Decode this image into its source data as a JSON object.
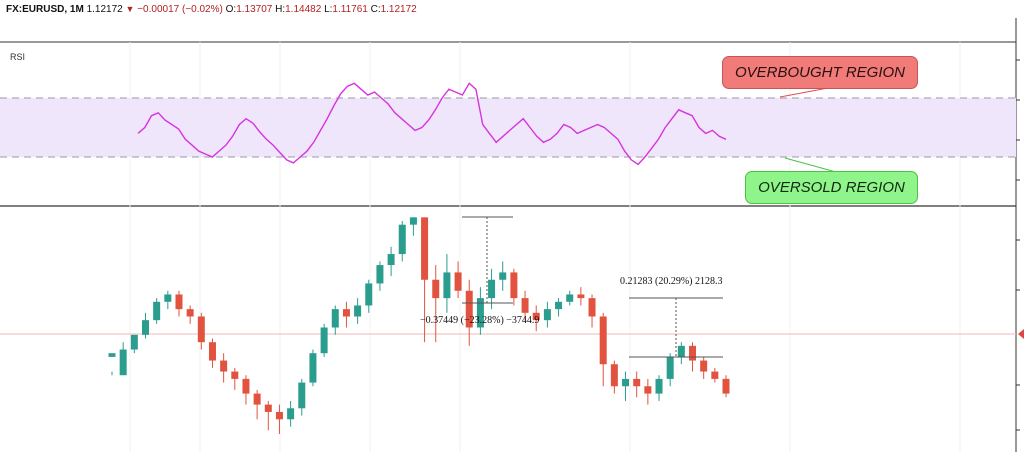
{
  "header": {
    "symbol": "FX:EURUSD, 1M",
    "last": "1.12172",
    "change_arrow": "▼",
    "change": "−0.00017 (−0.02%)",
    "o_label": "O:",
    "o": "1.13707",
    "h_label": "H:",
    "h": "1.14482",
    "l_label": "L:",
    "l": "1.11761",
    "c_label": "C:",
    "c": "1.12172"
  },
  "rsi_panel": {
    "label": "RSI",
    "overbought_label": "OVERBOUGHT REGION",
    "oversold_label": "OVERSOLD REGION",
    "band_color": "#efe6fb",
    "line_color": "#d633e0",
    "overbought_color": "#f07b78",
    "oversold_color": "#8ff58b"
  },
  "price_panel": {
    "measure_down": "−0.37449 (−23.28%) −3744.9",
    "measure_up": "0.21283 (20.29%) 2128.3",
    "up_color": "#2a9d8f",
    "down_color": "#e2533f"
  },
  "chart_data": {
    "type": "candlestick",
    "instrument": "FX:EURUSD",
    "interval": "1M",
    "rsi": {
      "overbought": 70,
      "oversold": 30,
      "ylim": [
        0,
        100
      ],
      "values": [
        46,
        50,
        58,
        60,
        55,
        52,
        49,
        42,
        38,
        34,
        32,
        30,
        34,
        38,
        44,
        52,
        56,
        53,
        47,
        42,
        38,
        33,
        28,
        26,
        30,
        34,
        40,
        48,
        56,
        65,
        73,
        78,
        80,
        76,
        72,
        74,
        70,
        66,
        60,
        56,
        52,
        48,
        50,
        55,
        62,
        70,
        76,
        74,
        72,
        80,
        76,
        52,
        46,
        40,
        44,
        48,
        52,
        56,
        50,
        44,
        40,
        42,
        46,
        52,
        50,
        46,
        48,
        50,
        52,
        50,
        46,
        42,
        34,
        28,
        25,
        30,
        36,
        42,
        50,
        56,
        62,
        60,
        58,
        50,
        46,
        48,
        44,
        42
      ]
    },
    "price": {
      "ylim": [
        0.98,
        1.62
      ],
      "candles": [
        [
          1.22,
          1.23,
          1.18,
          1.17
        ],
        [
          1.17,
          1.24,
          1.26,
          1.23
        ],
        [
          1.24,
          1.28,
          1.28,
          1.23
        ],
        [
          1.28,
          1.32,
          1.34,
          1.27
        ],
        [
          1.32,
          1.37,
          1.38,
          1.31
        ],
        [
          1.37,
          1.39,
          1.4,
          1.35
        ],
        [
          1.39,
          1.35,
          1.4,
          1.33
        ],
        [
          1.35,
          1.33,
          1.36,
          1.31
        ],
        [
          1.33,
          1.26,
          1.34,
          1.24
        ],
        [
          1.26,
          1.21,
          1.27,
          1.19
        ],
        [
          1.21,
          1.18,
          1.23,
          1.15
        ],
        [
          1.18,
          1.16,
          1.19,
          1.13
        ],
        [
          1.16,
          1.12,
          1.17,
          1.09
        ],
        [
          1.12,
          1.09,
          1.13,
          1.05
        ],
        [
          1.09,
          1.07,
          1.1,
          1.02
        ],
        [
          1.07,
          1.05,
          1.09,
          1.01
        ],
        [
          1.05,
          1.08,
          1.1,
          1.03
        ],
        [
          1.08,
          1.15,
          1.16,
          1.06
        ],
        [
          1.15,
          1.23,
          1.24,
          1.14
        ],
        [
          1.23,
          1.3,
          1.31,
          1.22
        ],
        [
          1.3,
          1.35,
          1.36,
          1.28
        ],
        [
          1.35,
          1.33,
          1.37,
          1.3
        ],
        [
          1.33,
          1.36,
          1.38,
          1.31
        ],
        [
          1.36,
          1.42,
          1.43,
          1.34
        ],
        [
          1.42,
          1.47,
          1.48,
          1.4
        ],
        [
          1.47,
          1.5,
          1.52,
          1.44
        ],
        [
          1.5,
          1.58,
          1.59,
          1.48
        ],
        [
          1.58,
          1.6,
          1.6,
          1.55
        ],
        [
          1.6,
          1.43,
          1.6,
          1.26
        ],
        [
          1.43,
          1.38,
          1.47,
          1.26
        ],
        [
          1.38,
          1.45,
          1.5,
          1.34
        ],
        [
          1.45,
          1.4,
          1.48,
          1.38
        ],
        [
          1.4,
          1.3,
          1.43,
          1.25
        ],
        [
          1.3,
          1.38,
          1.41,
          1.28
        ],
        [
          1.38,
          1.43,
          1.46,
          1.35
        ],
        [
          1.43,
          1.45,
          1.48,
          1.4
        ],
        [
          1.45,
          1.38,
          1.46,
          1.36
        ],
        [
          1.38,
          1.34,
          1.4,
          1.32
        ],
        [
          1.34,
          1.32,
          1.36,
          1.29
        ],
        [
          1.32,
          1.35,
          1.37,
          1.3
        ],
        [
          1.35,
          1.37,
          1.38,
          1.33
        ],
        [
          1.37,
          1.39,
          1.4,
          1.36
        ],
        [
          1.39,
          1.38,
          1.41,
          1.36
        ],
        [
          1.38,
          1.33,
          1.39,
          1.3
        ],
        [
          1.33,
          1.2,
          1.34,
          1.14
        ],
        [
          1.2,
          1.14,
          1.21,
          1.12
        ],
        [
          1.14,
          1.16,
          1.18,
          1.1
        ],
        [
          1.16,
          1.14,
          1.18,
          1.11
        ],
        [
          1.14,
          1.12,
          1.16,
          1.09
        ],
        [
          1.12,
          1.16,
          1.17,
          1.1
        ],
        [
          1.16,
          1.22,
          1.23,
          1.14
        ],
        [
          1.22,
          1.25,
          1.26,
          1.2
        ],
        [
          1.25,
          1.21,
          1.26,
          1.18
        ],
        [
          1.21,
          1.18,
          1.22,
          1.16
        ],
        [
          1.18,
          1.16,
          1.19,
          1.15
        ],
        [
          1.16,
          1.12,
          1.17,
          1.11
        ]
      ]
    }
  }
}
